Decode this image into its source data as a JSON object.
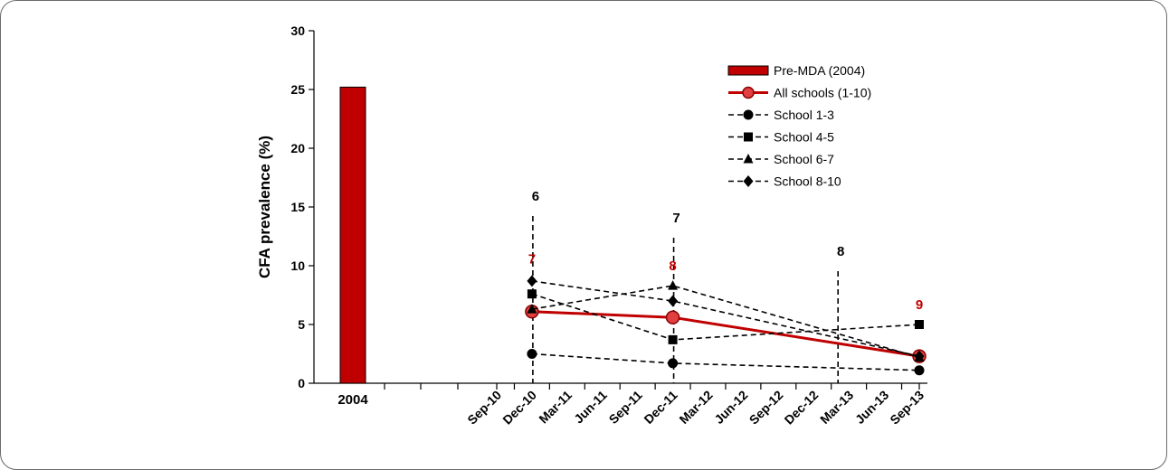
{
  "chart_data": {
    "type": "line",
    "ylabel": "CFA prevalence (%)",
    "ylim": [
      0,
      30
    ],
    "yticks": [
      "0",
      "5",
      "10",
      "15",
      "20",
      "25",
      "30"
    ],
    "bar": {
      "category": "2004",
      "value": 25.2,
      "color": "#c00000"
    },
    "x_tick_labels": [
      "Sep-10",
      "Dec-10",
      "Mar-11",
      "Jun-11",
      "Sep-11",
      "Dec-11",
      "Mar-12",
      "Jun-12",
      "Sep-12",
      "Dec-12",
      "Mar-13",
      "Jun-13",
      "Sep-13"
    ],
    "series": [
      {
        "name": "All schools (1-10)",
        "color": "#c00000",
        "style": "solid",
        "marker": "circle",
        "x": [
          "Dec-10",
          "Dec-11",
          "Sep-13"
        ],
        "values": [
          6.1,
          5.6,
          2.3
        ]
      },
      {
        "name": "School 1-3",
        "color": "#000000",
        "style": "dashed",
        "marker": "circle",
        "x": [
          "Dec-10",
          "Dec-11",
          "Sep-13"
        ],
        "values": [
          2.5,
          1.7,
          1.1
        ]
      },
      {
        "name": "School 4-5",
        "color": "#000000",
        "style": "dashed",
        "marker": "square",
        "x": [
          "Dec-10",
          "Dec-11",
          "Sep-13"
        ],
        "values": [
          7.6,
          3.7,
          5.0
        ]
      },
      {
        "name": "School 6-7",
        "color": "#000000",
        "style": "dashed",
        "marker": "triangle",
        "x": [
          "Dec-10",
          "Dec-11",
          "Sep-13"
        ],
        "values": [
          6.3,
          8.3,
          2.2
        ]
      },
      {
        "name": "School 8-10",
        "color": "#000000",
        "style": "dashed",
        "marker": "diamond",
        "x": [
          "Dec-10",
          "Dec-11",
          "Sep-13"
        ],
        "values": [
          8.7,
          7.0,
          2.3
        ]
      }
    ],
    "mda_rounds": [
      {
        "label": "6",
        "x": "Dec-10"
      },
      {
        "label": "7",
        "x": "Dec-11"
      },
      {
        "label": "8",
        "x": "Feb-13"
      }
    ],
    "survey_labels": [
      {
        "label": "7",
        "x": "Dec-10",
        "y": 10.2
      },
      {
        "label": "8",
        "x": "Dec-11",
        "y": 9.6
      },
      {
        "label": "9",
        "x": "Sep-13",
        "y": 6.3
      }
    ],
    "legend": {
      "position": "top-right",
      "items": [
        {
          "label": "Pre-MDA (2004)",
          "symbol": "bar"
        },
        {
          "label": "All schools (1-10)",
          "symbol": "circle"
        },
        {
          "label": "School 1-3",
          "symbol": "circle"
        },
        {
          "label": "School 4-5",
          "symbol": "square"
        },
        {
          "label": "School 6-7",
          "symbol": "triangle"
        },
        {
          "label": "School 8-10",
          "symbol": "diamond"
        }
      ]
    }
  }
}
